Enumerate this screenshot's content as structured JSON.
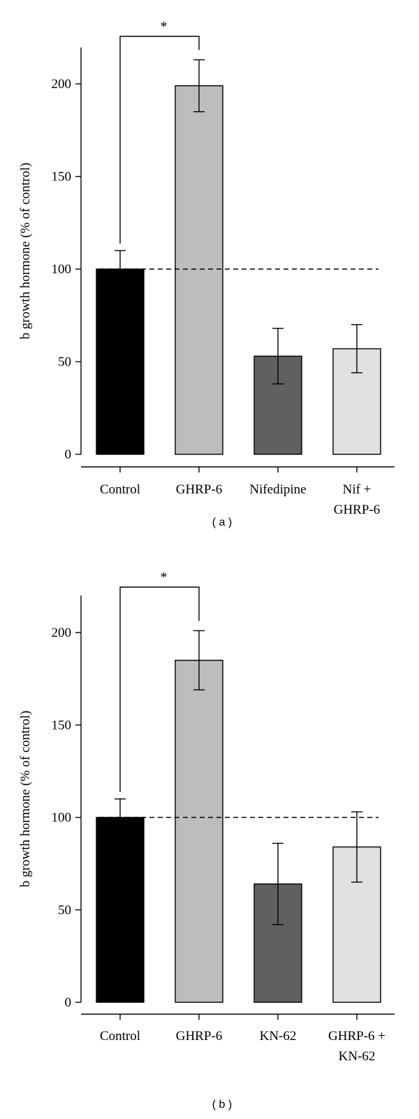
{
  "chart_data": [
    {
      "type": "bar",
      "panel_label": "( a )",
      "ylabel": "b growth hormone (% of control)",
      "xlabel": "",
      "ylim": [
        0,
        220
      ],
      "yticks": [
        0,
        50,
        100,
        150,
        200
      ],
      "categories": [
        [
          "Control"
        ],
        [
          "GHRP-6"
        ],
        [
          "Nifedipine"
        ],
        [
          "Nif +",
          "GHRP-6"
        ]
      ],
      "values": [
        100,
        199,
        53,
        57
      ],
      "errors": [
        10,
        14,
        15,
        13
      ],
      "bar_colors": [
        "#000000",
        "#bdbdbd",
        "#606060",
        "#e0e0e0"
      ],
      "reference_line": 100,
      "significance": {
        "from": 0,
        "to": 1,
        "label": "*"
      }
    },
    {
      "type": "bar",
      "panel_label": "( b )",
      "ylabel": "b growth hormone (% of control)",
      "xlabel": "",
      "ylim": [
        0,
        220
      ],
      "yticks": [
        0,
        50,
        100,
        150,
        200
      ],
      "categories": [
        [
          "Control"
        ],
        [
          "GHRP-6"
        ],
        [
          "KN-62"
        ],
        [
          "GHRP-6 +",
          "KN-62"
        ]
      ],
      "values": [
        100,
        185,
        64,
        84
      ],
      "errors": [
        10,
        16,
        22,
        19
      ],
      "bar_colors": [
        "#000000",
        "#bdbdbd",
        "#606060",
        "#e0e0e0"
      ],
      "reference_line": 100,
      "significance": {
        "from": 0,
        "to": 1,
        "label": "*"
      }
    }
  ]
}
